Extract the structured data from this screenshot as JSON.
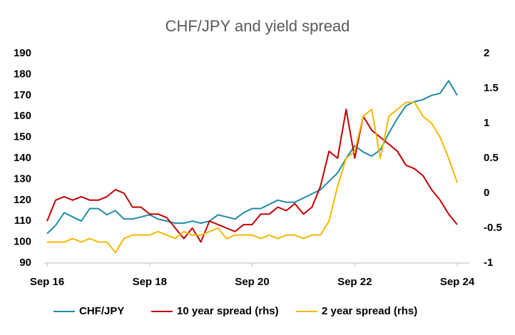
{
  "chart_data": {
    "type": "line",
    "title": "CHF/JPY and yield spread",
    "categories": [
      "Sep 16",
      null,
      null,
      null,
      null,
      null,
      null,
      null,
      null,
      null,
      null,
      null,
      "Sep 18",
      null,
      null,
      null,
      null,
      null,
      null,
      null,
      null,
      null,
      null,
      null,
      "Sep 20",
      null,
      null,
      null,
      null,
      null,
      null,
      null,
      null,
      null,
      null,
      null,
      "Sep 22",
      null,
      null,
      null,
      null,
      null,
      null,
      null,
      null,
      null,
      null,
      null,
      "Sep 24"
    ],
    "series": [
      {
        "name": "CHF/JPY",
        "color": "#1f8aa8",
        "axis": "y",
        "values": [
          104,
          108,
          114,
          112,
          110,
          116,
          116,
          113,
          115,
          111,
          111,
          112,
          113,
          111,
          110,
          109,
          109,
          110,
          109,
          110,
          113,
          112,
          111,
          114,
          116,
          116,
          118,
          120,
          119,
          119,
          121,
          123,
          125,
          129,
          133,
          140,
          146,
          143,
          141,
          144,
          152,
          159,
          165,
          167,
          168,
          170,
          171,
          177,
          170
        ]
      },
      {
        "name": "10 year spread (rhs)",
        "color": "#c00000",
        "axis": "y2",
        "values": [
          -0.4,
          -0.1,
          -0.05,
          -0.1,
          -0.05,
          -0.1,
          -0.1,
          -0.05,
          0.05,
          0,
          -0.2,
          -0.2,
          -0.3,
          -0.3,
          -0.35,
          -0.5,
          -0.65,
          -0.5,
          -0.7,
          -0.4,
          -0.45,
          -0.5,
          -0.55,
          -0.45,
          -0.45,
          -0.3,
          -0.3,
          -0.2,
          -0.25,
          -0.15,
          -0.3,
          -0.2,
          0.1,
          0.6,
          0.5,
          1.2,
          0.5,
          1.1,
          0.9,
          0.8,
          0.7,
          0.6,
          0.4,
          0.35,
          0.25,
          0.05,
          -0.1,
          -0.3,
          -0.45
        ]
      },
      {
        "name": "2 year spread (rhs)",
        "color": "#f5b800",
        "axis": "y2",
        "values": [
          -0.7,
          -0.7,
          -0.7,
          -0.65,
          -0.7,
          -0.65,
          -0.7,
          -0.7,
          -0.85,
          -0.65,
          -0.6,
          -0.6,
          -0.6,
          -0.55,
          -0.6,
          -0.65,
          -0.55,
          -0.6,
          -0.6,
          -0.55,
          -0.5,
          -0.65,
          -0.6,
          -0.6,
          -0.6,
          -0.65,
          -0.6,
          -0.65,
          -0.6,
          -0.6,
          -0.65,
          -0.6,
          -0.6,
          -0.4,
          0.1,
          0.5,
          0.6,
          1.1,
          1.2,
          0.5,
          1.1,
          1.2,
          1.3,
          1.3,
          1.1,
          1.0,
          0.8,
          0.5,
          0.15
        ]
      }
    ],
    "ylim": [
      90,
      190
    ],
    "yticks": [
      90,
      100,
      110,
      120,
      130,
      140,
      150,
      160,
      170,
      180,
      190
    ],
    "y2lim": [
      -1,
      2
    ],
    "y2ticks": [
      -1,
      -0.5,
      0,
      0.5,
      1,
      1.5,
      2
    ],
    "legend": "bottom"
  }
}
